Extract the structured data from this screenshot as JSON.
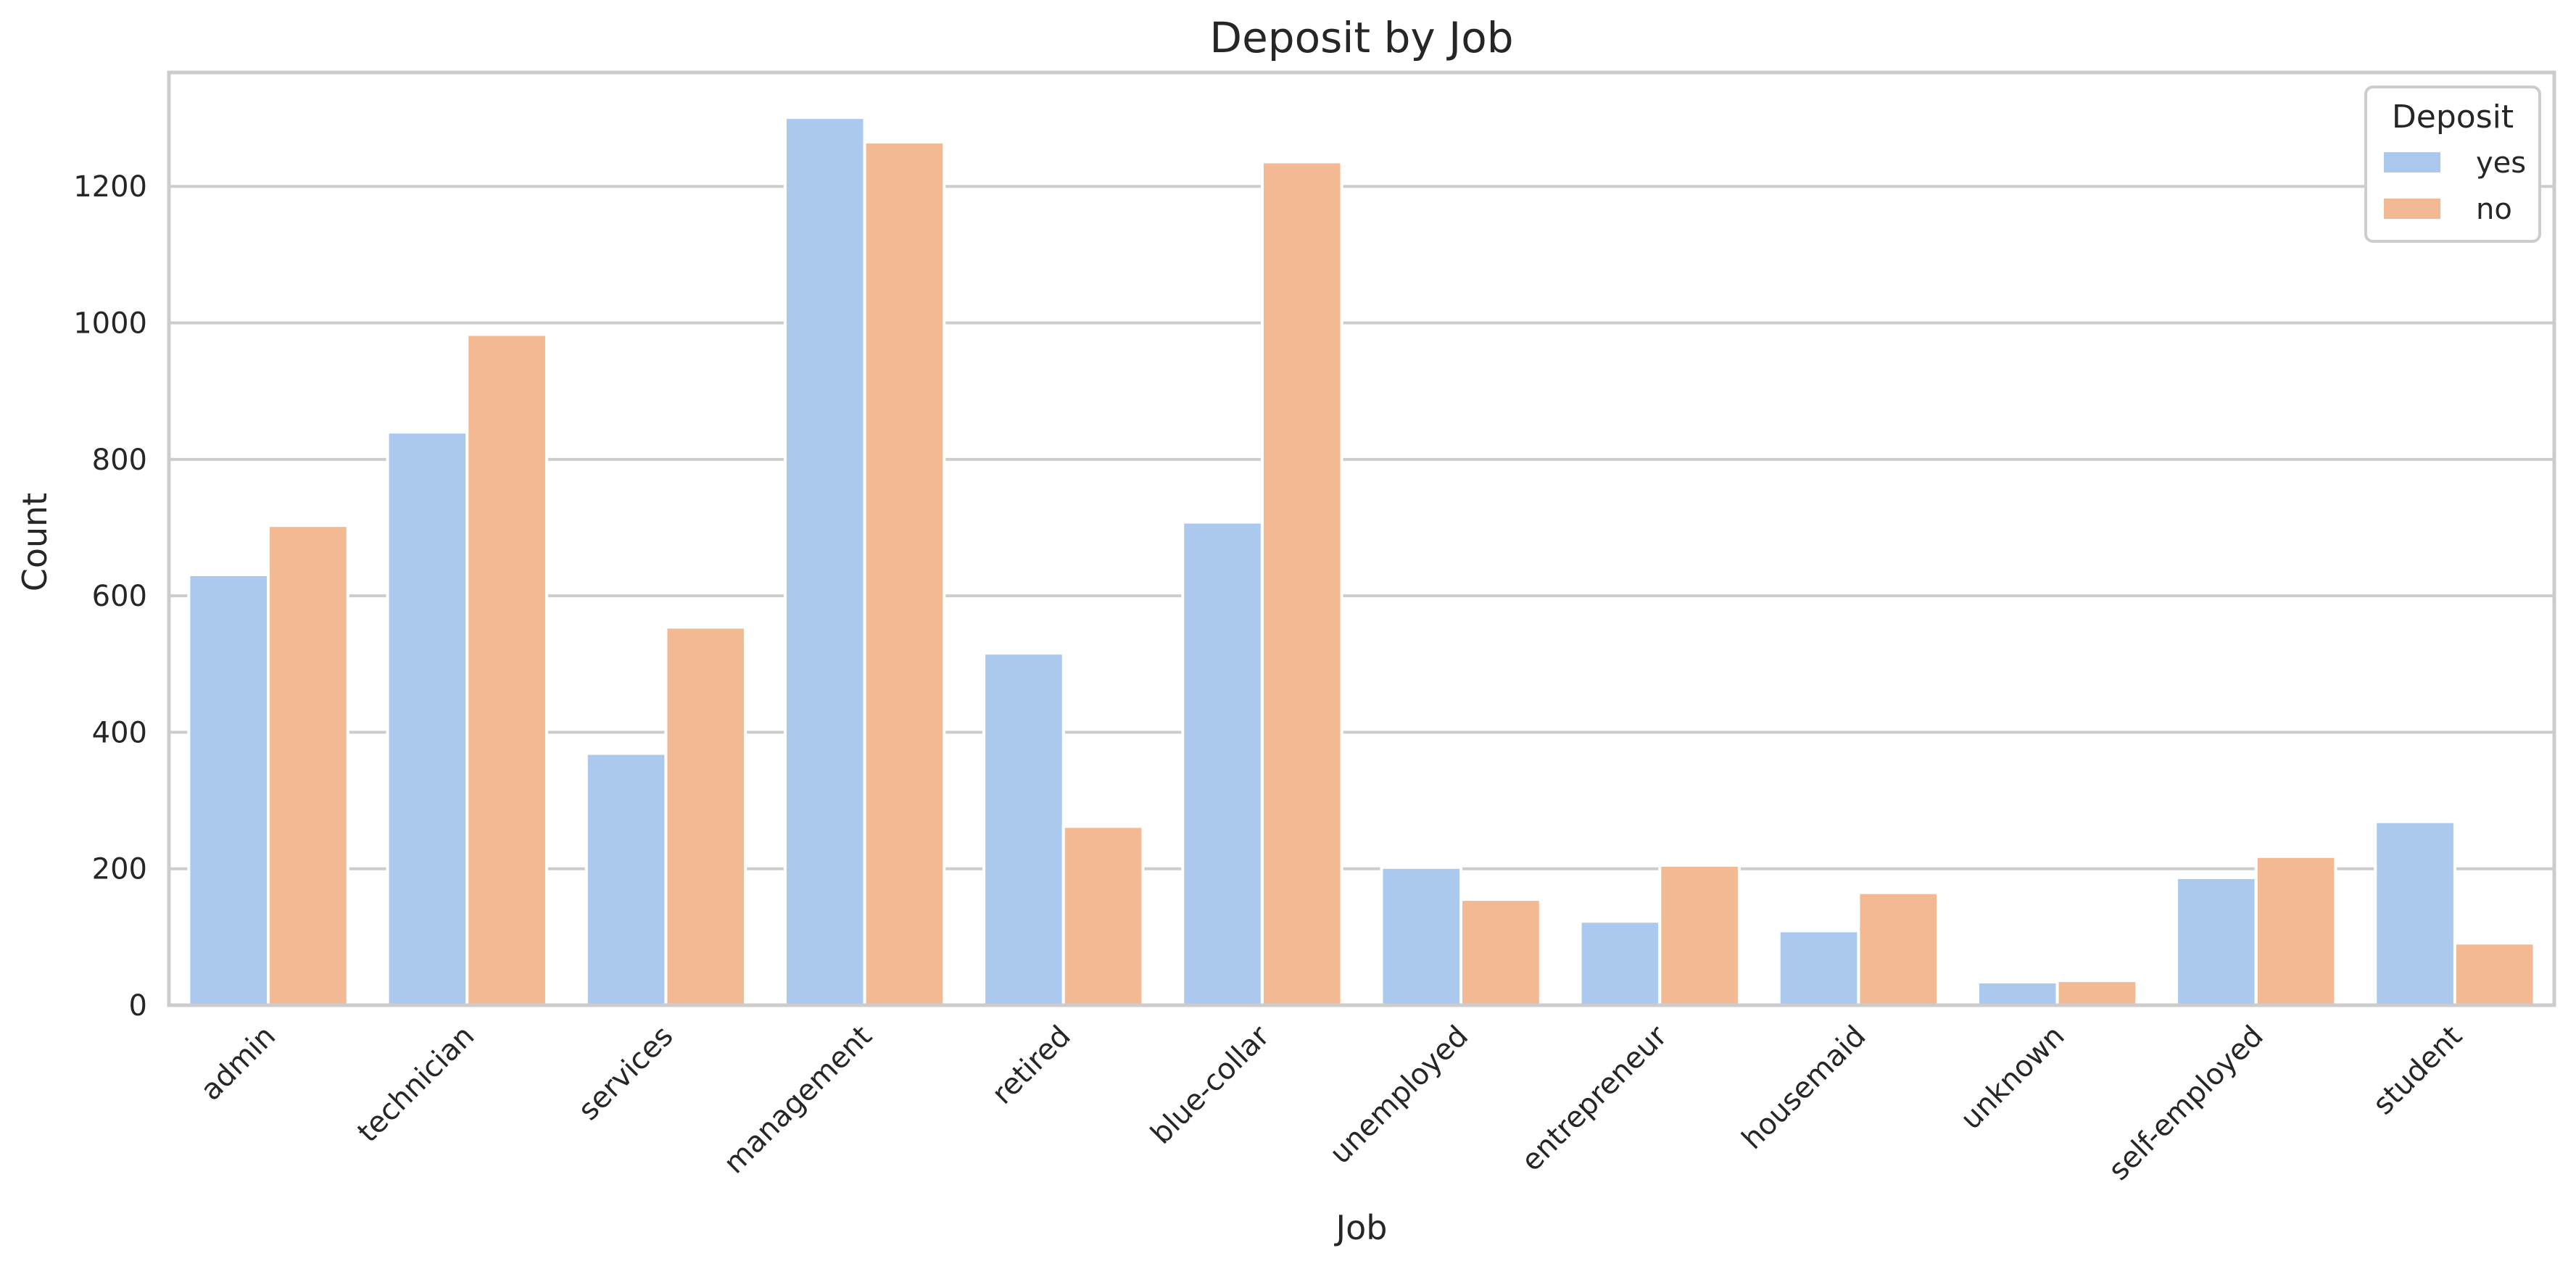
{
  "chart_data": {
    "type": "bar",
    "title": "Deposit by Job",
    "xlabel": "Job",
    "ylabel": "Count",
    "categories": [
      "admin",
      "technician",
      "services",
      "management",
      "retired",
      "blue-collar",
      "unemployed",
      "entrepreneur",
      "housemaid",
      "unknown",
      "self-employed",
      "student"
    ],
    "series": [
      {
        "name": "yes",
        "color": "#abc9ef",
        "values": [
          631,
          840,
          369,
          1301,
          516,
          708,
          202,
          123,
          109,
          34,
          187,
          269
        ]
      },
      {
        "name": "no",
        "color": "#f2b993",
        "values": [
          703,
          983,
          554,
          1265,
          262,
          1236,
          155,
          205,
          165,
          36,
          218,
          91
        ]
      }
    ],
    "ylim": [
      0,
      1367
    ],
    "yticks": [
      0,
      200,
      400,
      600,
      800,
      1000,
      1200
    ],
    "grid": "horizontal",
    "legend": {
      "title": "Deposit",
      "placement": "top-right"
    }
  }
}
